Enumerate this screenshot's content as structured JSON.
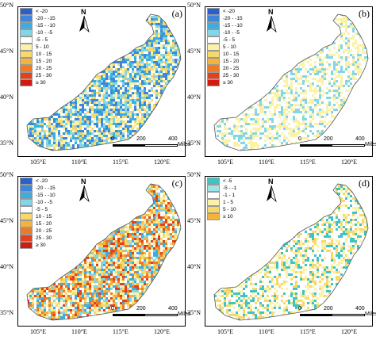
{
  "panels": [
    {
      "id": "a",
      "label": "(a)",
      "legend": [
        {
          "text": "< -20",
          "color": "#2b5fce"
        },
        {
          "text": "-20 - -15",
          "color": "#3d86db"
        },
        {
          "text": "-15 - -10",
          "color": "#3aaee0"
        },
        {
          "text": "-10 - -5",
          "color": "#84d6e6"
        },
        {
          "text": "-5 - 5",
          "color": "#ffffff"
        },
        {
          "text": "5 - 10",
          "color": "#fbf2a8"
        },
        {
          "text": "10 - 15",
          "color": "#f7d86a"
        },
        {
          "text": "15 - 20",
          "color": "#f4b33d"
        },
        {
          "text": "20 - 25",
          "color": "#ee7a26"
        },
        {
          "text": "25 - 30",
          "color": "#e4401b"
        },
        {
          "text": "≥ 30",
          "color": "#d11a12"
        }
      ],
      "fill_mix": [
        "#ffffff",
        "#fbf2a8",
        "#84d6e6",
        "#3aaee0",
        "#3d86db",
        "#f7d86a"
      ]
    },
    {
      "id": "b",
      "label": "(b)",
      "legend": [
        {
          "text": "< -20",
          "color": "#2b5fce"
        },
        {
          "text": "-20 - -15",
          "color": "#3d86db"
        },
        {
          "text": "-15 - -10",
          "color": "#3aaee0"
        },
        {
          "text": "-10 - -5",
          "color": "#84d6e6"
        },
        {
          "text": "-5 - 5",
          "color": "#ffffff"
        },
        {
          "text": "5 - 10",
          "color": "#fbf2a8"
        },
        {
          "text": "10 - 15",
          "color": "#f7d86a"
        },
        {
          "text": "15 - 20",
          "color": "#f4b33d"
        },
        {
          "text": "20 - 25",
          "color": "#ee7a26"
        },
        {
          "text": "25 - 30",
          "color": "#e4401b"
        },
        {
          "text": "≥ 30",
          "color": "#d11a12"
        }
      ],
      "fill_mix": [
        "#ffffff",
        "#ffffff",
        "#fbf2a8",
        "#84d6e6",
        "#fbf2a8",
        "#ffffff"
      ]
    },
    {
      "id": "c",
      "label": "(c)",
      "legend": [
        {
          "text": "< -20",
          "color": "#2b5fce"
        },
        {
          "text": "-20 - -15",
          "color": "#3d86db"
        },
        {
          "text": "-15 - -10",
          "color": "#3aaee0"
        },
        {
          "text": "-10 - -5",
          "color": "#84d6e6"
        },
        {
          "text": "-5 - 5",
          "color": "#ffffff"
        },
        {
          "text": "10 - 15",
          "color": "#f7d86a"
        },
        {
          "text": "15 - 20",
          "color": "#f4b33d"
        },
        {
          "text": "20 - 25",
          "color": "#ee7a26"
        },
        {
          "text": "25 - 30",
          "color": "#e4401b"
        },
        {
          "text": "≥ 30",
          "color": "#d11a12"
        }
      ],
      "fill_mix": [
        "#fbf2a8",
        "#f7d86a",
        "#f4b33d",
        "#ee7a26",
        "#ffffff",
        "#84d6e6",
        "#3aaee0",
        "#e4401b"
      ]
    },
    {
      "id": "d",
      "label": "(d)",
      "legend": [
        {
          "text": "< -5",
          "color": "#3fc4c4"
        },
        {
          "text": "-5 - -1",
          "color": "#9fe3e3"
        },
        {
          "text": "-1 - 1",
          "color": "#ffffff"
        },
        {
          "text": "1 - 5",
          "color": "#fbf2a8"
        },
        {
          "text": "5 - 10",
          "color": "#f7d86a"
        },
        {
          "text": "≥ 10",
          "color": "#f4b33d"
        }
      ],
      "fill_mix": [
        "#ffffff",
        "#ffffff",
        "#fbf2a8",
        "#f7d86a",
        "#ffffff",
        "#3fc4c4"
      ]
    }
  ],
  "north_label": "N",
  "scale": {
    "ticks": [
      "0",
      "200",
      "400"
    ],
    "unit": "Miles"
  },
  "lat_labels": [
    "50°N",
    "45°N",
    "40°N",
    "35°N"
  ],
  "lon_labels": [
    "105°E",
    "110°E",
    "115°E",
    "120°E"
  ]
}
